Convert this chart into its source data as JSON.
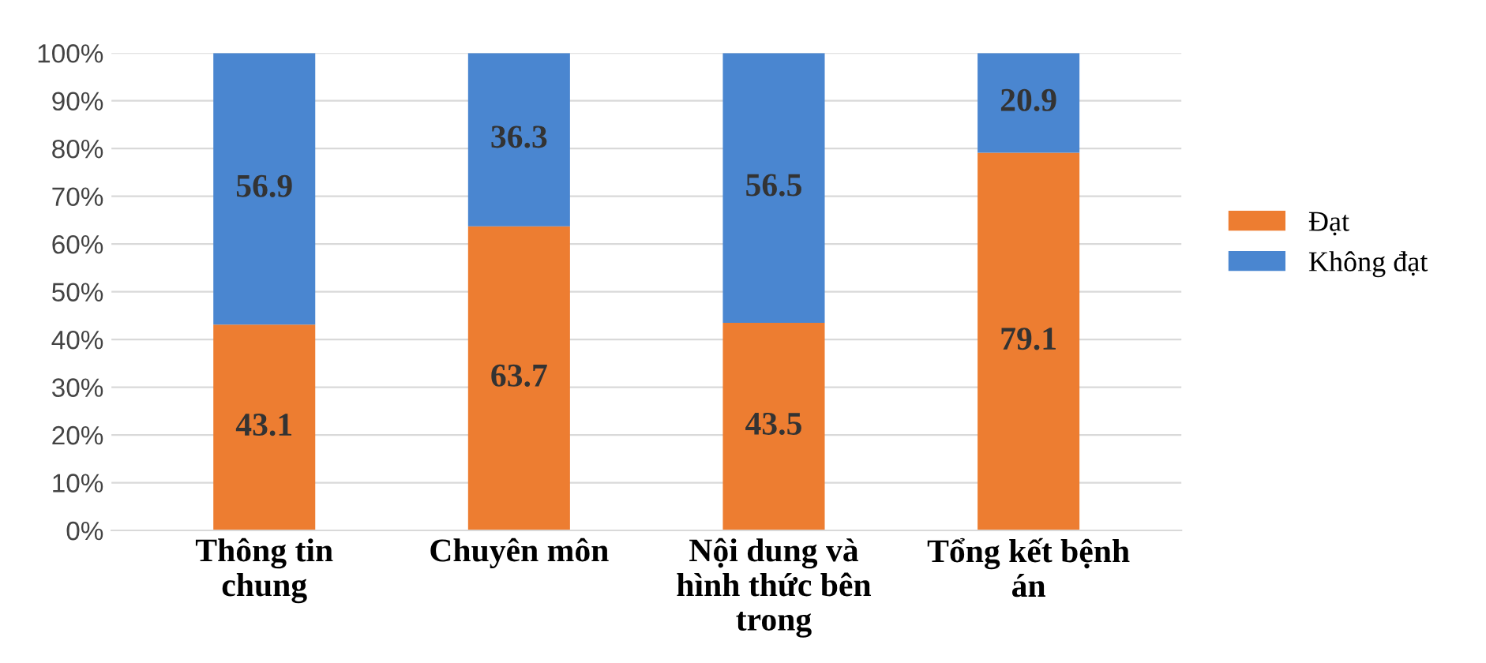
{
  "chart_data": {
    "type": "bar",
    "stacked": true,
    "categories": [
      "Thông tin chung",
      "Chuyên môn",
      "Nội dung và hình thức bên trong",
      "Tổng kết bệnh án"
    ],
    "series": [
      {
        "name": "Đạt",
        "color": "#ed7d31",
        "values": [
          43.1,
          63.7,
          43.5,
          79.1
        ]
      },
      {
        "name": "Không đạt",
        "color": "#4a86d0",
        "values": [
          56.9,
          36.3,
          56.5,
          20.9
        ]
      }
    ],
    "ylim": [
      0,
      100
    ],
    "yticks": [
      {
        "value": 0,
        "label": "0%"
      },
      {
        "value": 10,
        "label": "10%"
      },
      {
        "value": 20,
        "label": "20%"
      },
      {
        "value": 30,
        "label": "30%"
      },
      {
        "value": 40,
        "label": "40%"
      },
      {
        "value": 50,
        "label": "50%"
      },
      {
        "value": 60,
        "label": "60%"
      },
      {
        "value": 70,
        "label": "70%"
      },
      {
        "value": 80,
        "label": "80%"
      },
      {
        "value": 90,
        "label": "90%"
      },
      {
        "value": 100,
        "label": "100%"
      }
    ],
    "grid": "y",
    "legend": "right",
    "data_labels": true
  }
}
